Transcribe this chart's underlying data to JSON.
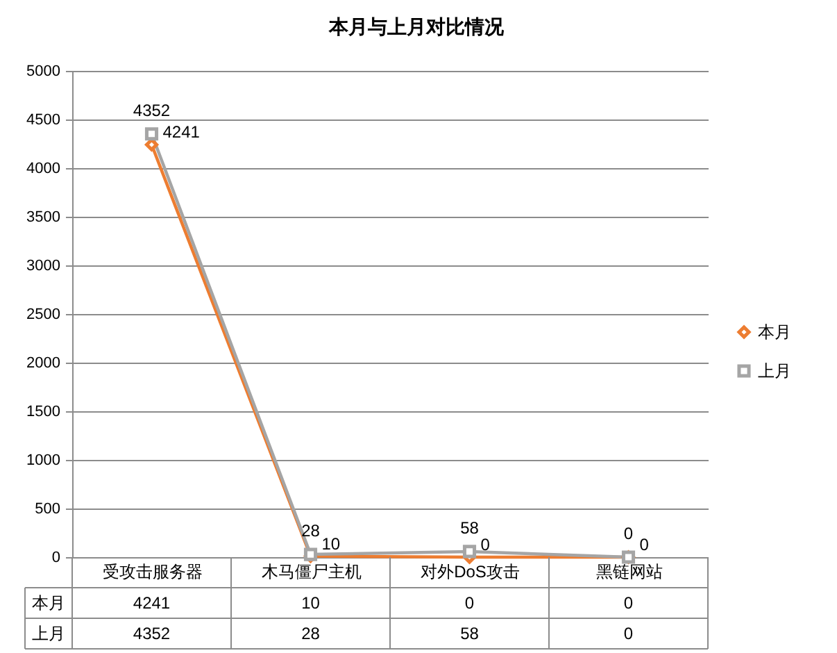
{
  "chart_data": {
    "type": "line",
    "title": "本月与上月对比情况",
    "categories": [
      "受攻击服务器",
      "木马僵尸主机",
      "对外DoS攻击",
      "黑链网站"
    ],
    "series": [
      {
        "name": "本月",
        "color": "#ed7d31",
        "marker": "diamond",
        "values": [
          4241,
          10,
          0,
          0
        ]
      },
      {
        "name": "上月",
        "color": "#a5a5a5",
        "marker": "square",
        "values": [
          4352,
          28,
          58,
          0
        ]
      }
    ],
    "annotations": [
      {
        "text": "4241",
        "x": "受攻击服务器",
        "y": 4241
      },
      {
        "text": "10",
        "x": "木马僵尸主机",
        "y": 10
      },
      {
        "text": "0",
        "x": "对外DoS攻击",
        "y": 0
      },
      {
        "text": "0",
        "x": "黑链网站",
        "y": 0
      },
      {
        "text": "4352",
        "x": "受攻击服务器",
        "y": 4352
      },
      {
        "text": "28",
        "x": "木马僵尸主机",
        "y": 28
      },
      {
        "text": "58",
        "x": "对外DoS攻击",
        "y": 58
      },
      {
        "text": "0",
        "x": "黑链网站",
        "y": 0
      }
    ],
    "ylim": [
      0,
      5000
    ],
    "yticks": [
      0,
      500,
      1000,
      1500,
      2000,
      2500,
      3000,
      3500,
      4000,
      4500,
      5000
    ],
    "grid": "y",
    "legend": "right",
    "data_labels": true
  }
}
